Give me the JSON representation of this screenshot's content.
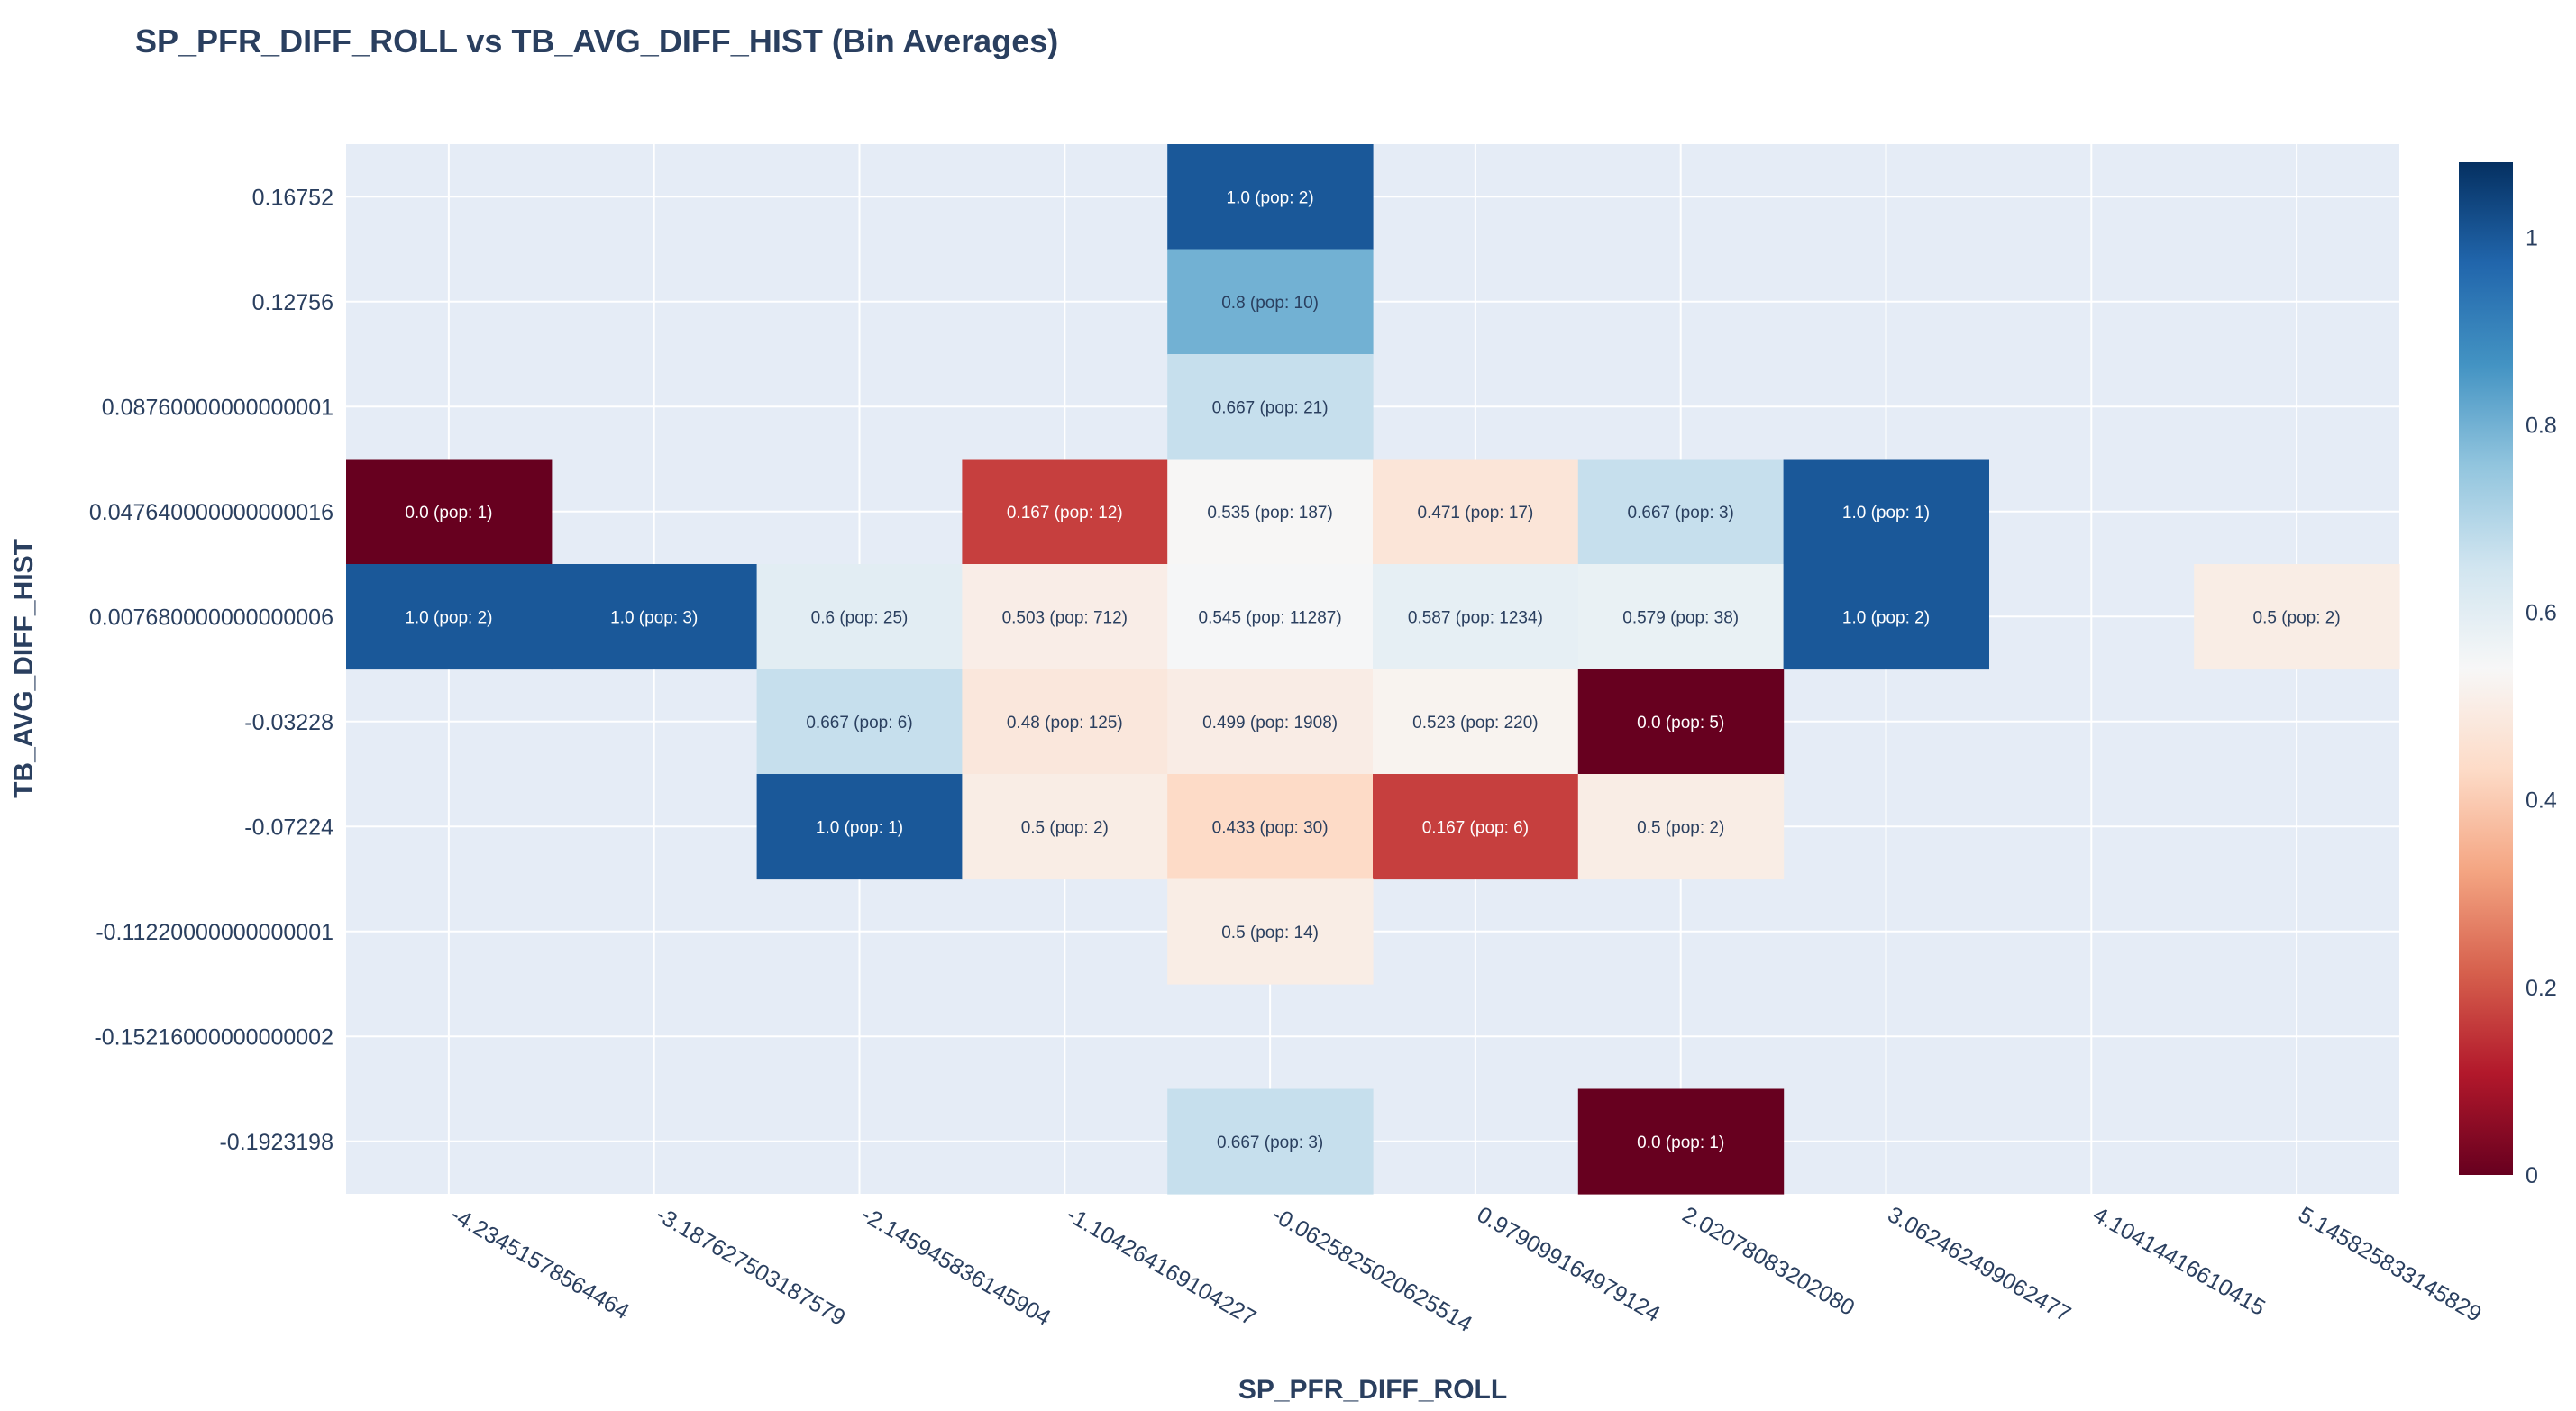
{
  "chart_data": {
    "type": "heatmap",
    "title": "SP_PFR_DIFF_ROLL vs TB_AVG_DIFF_HIST (Bin Averages)",
    "xlabel": "SP_PFR_DIFF_ROLL",
    "ylabel": "TB_AVG_DIFF_HIST",
    "x_categories": [
      "-4.23451578564464",
      "-3.187627503187579",
      "-2.145945836145904",
      "-1.104264169104227",
      "-0.0625825020625514",
      "0.979099164979124",
      "2.02078083202080",
      "3.062462499062477",
      "4.10414416610415",
      "5.145825833145829"
    ],
    "y_categories": [
      "0.16752",
      "0.12756",
      "0.08760000000000001",
      "0.047640000000000016",
      "0.007680000000000006",
      "-0.03228",
      "-0.07224",
      "-0.11220000000000001",
      "-0.15216000000000002",
      "-0.1923198"
    ],
    "cells": [
      {
        "x": 4,
        "y": 0,
        "value": 1.0,
        "label": "1.0 (pop: 2)"
      },
      {
        "x": 4,
        "y": 1,
        "value": 0.8,
        "label": "0.8 (pop: 10)"
      },
      {
        "x": 4,
        "y": 2,
        "value": 0.667,
        "label": "0.667 (pop: 21)"
      },
      {
        "x": 0,
        "y": 3,
        "value": 0.0,
        "label": "0.0 (pop: 1)"
      },
      {
        "x": 3,
        "y": 3,
        "value": 0.167,
        "label": "0.167 (pop: 12)"
      },
      {
        "x": 4,
        "y": 3,
        "value": 0.535,
        "label": "0.535 (pop: 187)"
      },
      {
        "x": 5,
        "y": 3,
        "value": 0.471,
        "label": "0.471 (pop: 17)"
      },
      {
        "x": 6,
        "y": 3,
        "value": 0.667,
        "label": "0.667 (pop: 3)"
      },
      {
        "x": 7,
        "y": 3,
        "value": 1.0,
        "label": "1.0 (pop: 1)"
      },
      {
        "x": 0,
        "y": 4,
        "value": 1.0,
        "label": "1.0 (pop: 2)"
      },
      {
        "x": 1,
        "y": 4,
        "value": 1.0,
        "label": "1.0 (pop: 3)"
      },
      {
        "x": 2,
        "y": 4,
        "value": 0.6,
        "label": "0.6 (pop: 25)"
      },
      {
        "x": 3,
        "y": 4,
        "value": 0.503,
        "label": "0.503 (pop: 712)"
      },
      {
        "x": 4,
        "y": 4,
        "value": 0.545,
        "label": "0.545 (pop: 11287)"
      },
      {
        "x": 5,
        "y": 4,
        "value": 0.587,
        "label": "0.587 (pop: 1234)"
      },
      {
        "x": 6,
        "y": 4,
        "value": 0.579,
        "label": "0.579 (pop: 38)"
      },
      {
        "x": 7,
        "y": 4,
        "value": 1.0,
        "label": "1.0 (pop: 2)"
      },
      {
        "x": 9,
        "y": 4,
        "value": 0.5,
        "label": "0.5 (pop: 2)"
      },
      {
        "x": 2,
        "y": 5,
        "value": 0.667,
        "label": "0.667 (pop: 6)"
      },
      {
        "x": 3,
        "y": 5,
        "value": 0.48,
        "label": "0.48 (pop: 125)"
      },
      {
        "x": 4,
        "y": 5,
        "value": 0.499,
        "label": "0.499 (pop: 1908)"
      },
      {
        "x": 5,
        "y": 5,
        "value": 0.523,
        "label": "0.523 (pop: 220)"
      },
      {
        "x": 6,
        "y": 5,
        "value": 0.0,
        "label": "0.0 (pop: 5)"
      },
      {
        "x": 2,
        "y": 6,
        "value": 1.0,
        "label": "1.0 (pop: 1)"
      },
      {
        "x": 3,
        "y": 6,
        "value": 0.5,
        "label": "0.5 (pop: 2)"
      },
      {
        "x": 4,
        "y": 6,
        "value": 0.433,
        "label": "0.433 (pop: 30)"
      },
      {
        "x": 5,
        "y": 6,
        "value": 0.167,
        "label": "0.167 (pop: 6)"
      },
      {
        "x": 6,
        "y": 6,
        "value": 0.5,
        "label": "0.5 (pop: 2)"
      },
      {
        "x": 4,
        "y": 7,
        "value": 0.5,
        "label": "0.5 (pop: 14)"
      },
      {
        "x": 4,
        "y": 9,
        "value": 0.667,
        "label": "0.667 (pop: 3)"
      },
      {
        "x": 6,
        "y": 9,
        "value": 0.0,
        "label": "0.0 (pop: 1)"
      }
    ],
    "colorscale": "RdBu",
    "zlim": [
      0,
      1.08
    ],
    "colorbar_ticks": [
      "0",
      "0.2",
      "0.4",
      "0.6",
      "0.8",
      "1"
    ],
    "colorbar_tick_values": [
      0,
      0.2,
      0.4,
      0.6,
      0.8,
      1
    ],
    "grid": true,
    "plot_background": "#e5ecf6",
    "text_color_dark": "#2a3f5f",
    "text_color_light": "#ffffff"
  }
}
